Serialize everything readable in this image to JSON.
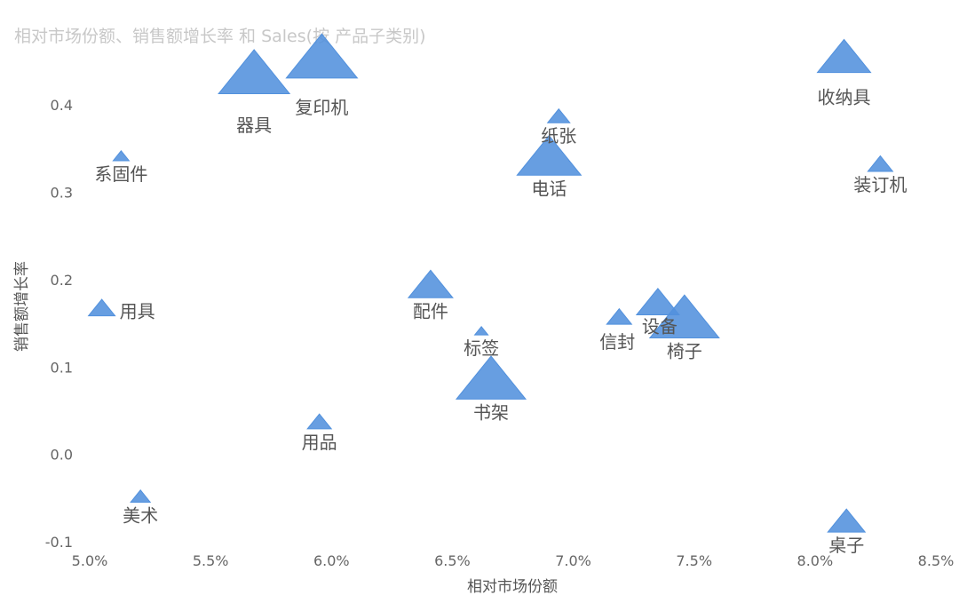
{
  "chart_data": {
    "type": "scatter",
    "title": "相对市场份额、销售额增长率 和 Sales(按 产品子类别)",
    "xlabel": "相对市场份额",
    "ylabel": "销售额增长率",
    "xlim": [
      0.05,
      0.085
    ],
    "ylim": [
      -0.1,
      0.45
    ],
    "x_ticks": [
      0.05,
      0.055,
      0.06,
      0.065,
      0.07,
      0.075,
      0.08,
      0.085
    ],
    "x_tick_labels": [
      "5.0%",
      "5.5%",
      "6.0%",
      "6.5%",
      "7.0%",
      "7.5%",
      "8.0%",
      "8.5%"
    ],
    "y_ticks": [
      -0.1,
      0.0,
      0.1,
      0.2,
      0.3,
      0.4
    ],
    "y_tick_labels": [
      "-0.1",
      "0.0",
      "0.1",
      "0.2",
      "0.3",
      "0.4"
    ],
    "marker": "triangle",
    "color": "#5291dd",
    "points": [
      {
        "label": "器具",
        "x": 0.0568,
        "y": 0.43,
        "size": 80
      },
      {
        "label": "复印机",
        "x": 0.0596,
        "y": 0.448,
        "size": 80
      },
      {
        "label": "收纳具",
        "x": 0.0812,
        "y": 0.45,
        "size": 60
      },
      {
        "label": "纸张",
        "x": 0.0694,
        "y": 0.385,
        "size": 25
      },
      {
        "label": "系固件",
        "x": 0.0513,
        "y": 0.34,
        "size": 18
      },
      {
        "label": "电话",
        "x": 0.069,
        "y": 0.335,
        "size": 72
      },
      {
        "label": "装订机",
        "x": 0.0827,
        "y": 0.33,
        "size": 28
      },
      {
        "label": "用具",
        "x": 0.0505,
        "y": 0.165,
        "size": 30
      },
      {
        "label": "配件",
        "x": 0.0641,
        "y": 0.19,
        "size": 50
      },
      {
        "label": "标签",
        "x": 0.0662,
        "y": 0.14,
        "size": 15
      },
      {
        "label": "信封",
        "x": 0.0719,
        "y": 0.155,
        "size": 28
      },
      {
        "label": "设备",
        "x": 0.0735,
        "y": 0.17,
        "size": 48
      },
      {
        "label": "椅子",
        "x": 0.0746,
        "y": 0.15,
        "size": 78
      },
      {
        "label": "书架",
        "x": 0.0666,
        "y": 0.08,
        "size": 78
      },
      {
        "label": "用品",
        "x": 0.0595,
        "y": 0.035,
        "size": 27
      },
      {
        "label": "美术",
        "x": 0.0521,
        "y": -0.05,
        "size": 22
      },
      {
        "label": "桌子",
        "x": 0.0813,
        "y": -0.08,
        "size": 42
      }
    ]
  }
}
